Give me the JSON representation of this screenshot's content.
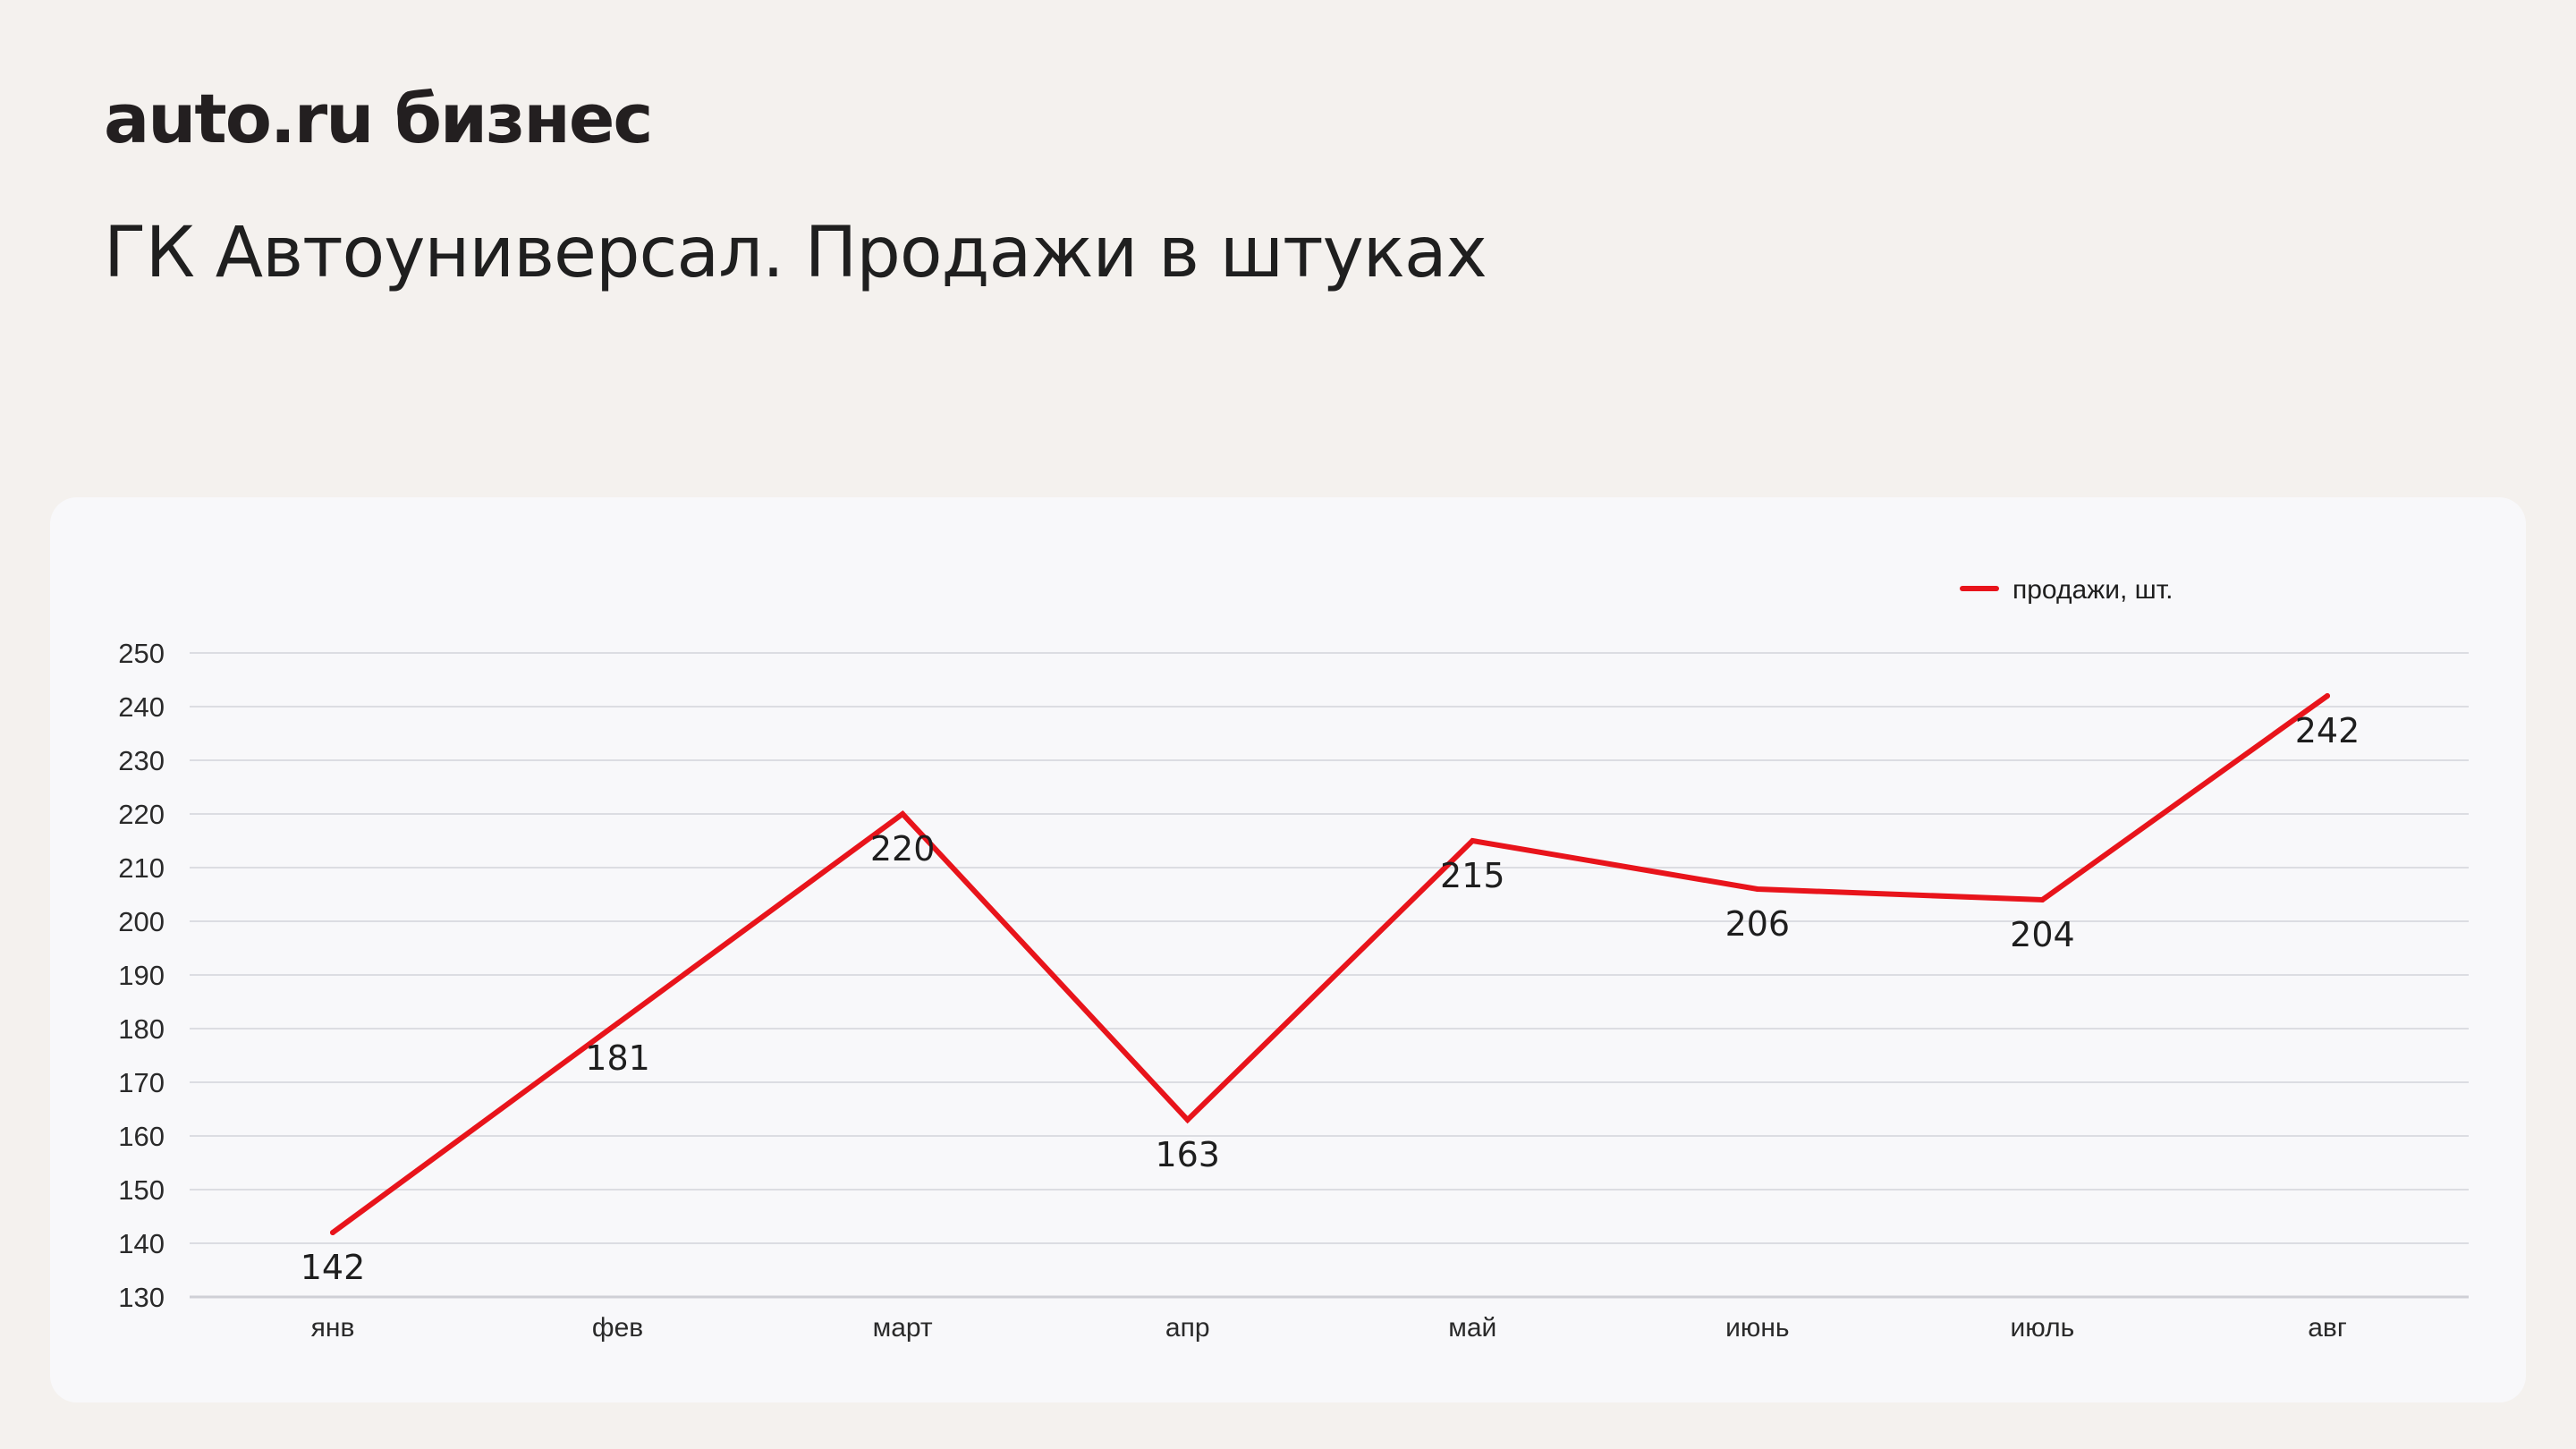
{
  "brand": "auto.ru бизнес",
  "title": "ГК Автоуниверсал. Продажи в штуках",
  "colors": {
    "background": "#f4f1ee",
    "card": "#f8f8fa",
    "series": "#e8141b",
    "grid": "#dcdde2"
  },
  "chart_data": {
    "type": "line",
    "categories": [
      "янв",
      "фев",
      "март",
      "апр",
      "май",
      "июнь",
      "июль",
      "авг"
    ],
    "series": [
      {
        "name": "продажи, шт.",
        "values": [
          142,
          181,
          220,
          163,
          215,
          206,
          204,
          242
        ]
      }
    ],
    "yticks": [
      130,
      140,
      150,
      160,
      170,
      180,
      190,
      200,
      210,
      220,
      230,
      240,
      250
    ],
    "ylim": [
      130,
      250
    ],
    "grid": true,
    "legend": "top-right",
    "data_labels": true
  }
}
